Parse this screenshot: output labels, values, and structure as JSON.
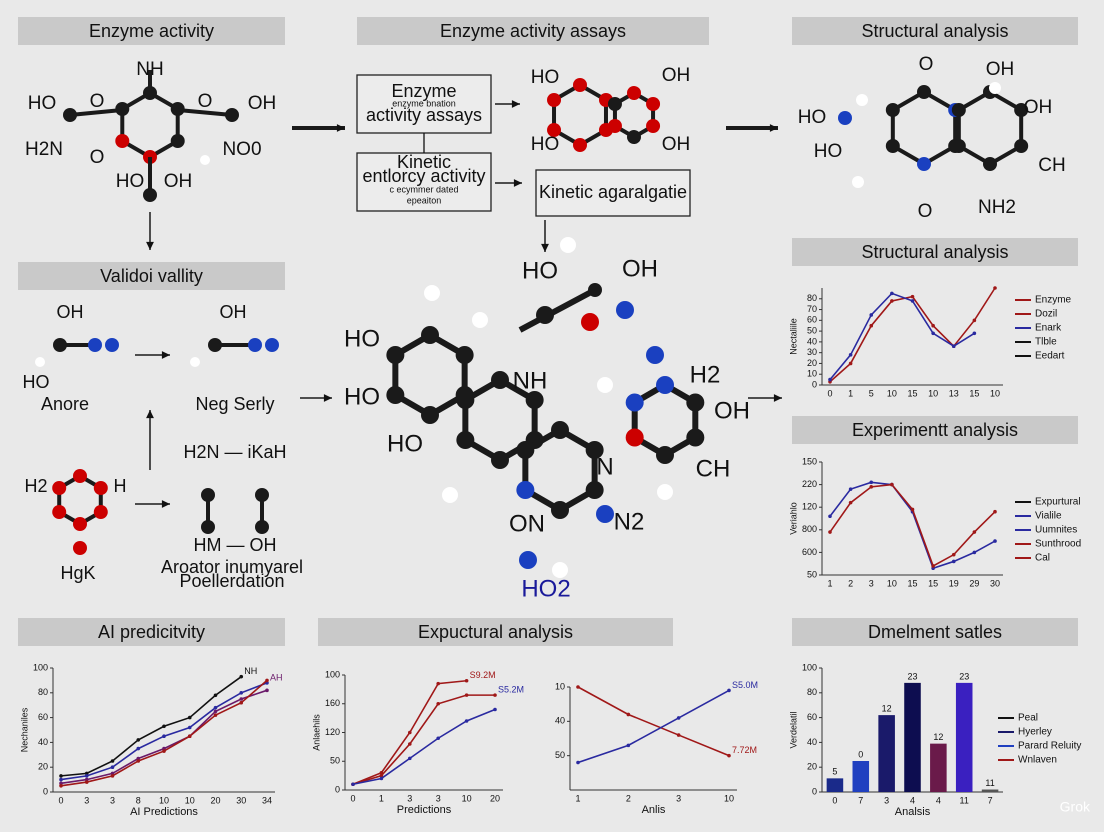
{
  "titles": [
    "Enzyme activity",
    "Enzyme activity assays",
    "Structural analysis",
    "Validoi vallity",
    "Structural analysis",
    "Experimentt analysis",
    "AI predicitvity",
    "Expuctural analysis",
    "Dmelment satles"
  ],
  "labels": {
    "enzyme": [
      "NH",
      "HO",
      "O",
      "O",
      "OH",
      "H2N",
      "O",
      "NO0",
      "HO",
      "OH"
    ],
    "flow": [
      "Enzyme",
      "enzyme bnation",
      "activity assays",
      "Kinetic",
      "entlorcy activity",
      "c ecymmer dated",
      "epeaiton",
      "Kinetic agaralgatie"
    ],
    "assay": [
      "HO",
      "OH",
      "HO",
      "OH"
    ],
    "structure": [
      "O",
      "OH",
      "HO",
      "OH",
      "HO",
      "CH",
      "O",
      "NH2"
    ],
    "validor": [
      "OH",
      "HO",
      "Anore",
      "OH",
      "Neg Serly",
      "H2N — iKaH",
      "HM — OH",
      "Aroator inumyarel",
      "Poellerdation",
      "H2",
      "H",
      "HgK"
    ],
    "center": [
      "HO",
      "OH",
      "HO",
      "HO",
      "NH",
      "HO",
      "H2",
      "OH",
      "N",
      "CH",
      "ON",
      "N2",
      "HO2"
    ]
  },
  "charts": [
    {
      "type": "line",
      "ylabel": "Nectaliile",
      "categories": [
        "0",
        "1",
        "5",
        "10",
        "15",
        "10",
        "13",
        "15",
        "10"
      ],
      "ylim": [
        0,
        90
      ],
      "yticks": [
        0,
        10,
        20,
        30,
        40,
        50,
        60,
        70,
        80
      ],
      "series": [
        {
          "color": "#a01818",
          "values": [
            3,
            20,
            55,
            78,
            82,
            55,
            36,
            60,
            90
          ]
        },
        {
          "color": "#2a2aa0",
          "values": [
            5,
            28,
            65,
            85,
            78,
            48,
            36,
            48,
            null
          ]
        }
      ],
      "legend": [
        {
          "name": "Enzyme",
          "color": "#a01818"
        },
        {
          "name": "Dozil",
          "color": "#a01818"
        },
        {
          "name": "Enark",
          "color": "#2a2aa0"
        },
        {
          "name": "Tlble",
          "color": "#111111"
        },
        {
          "name": "Eedart",
          "color": "#111111"
        }
      ]
    },
    {
      "type": "line",
      "ylabel": "Veriahlo",
      "categories": [
        "1",
        "2",
        "3",
        "10",
        "15",
        "15",
        "19",
        "29",
        "30"
      ],
      "ylim": [
        0,
        5
      ],
      "yticks": [
        {
          "value": 0,
          "label": "50"
        },
        {
          "value": 1,
          "label": "600"
        },
        {
          "value": 2,
          "label": "800"
        },
        {
          "value": 3,
          "label": "120"
        },
        {
          "value": 4,
          "label": "220"
        },
        {
          "value": 5,
          "label": "150"
        }
      ],
      "series": [
        {
          "color": "#2a2aa0",
          "values": [
            2.6,
            3.8,
            4.1,
            4.0,
            2.8,
            0.3,
            0.6,
            1.0,
            1.5
          ]
        },
        {
          "color": "#a01818",
          "values": [
            1.9,
            3.2,
            3.9,
            4.0,
            2.9,
            0.4,
            0.9,
            1.9,
            2.8
          ]
        }
      ],
      "legend": [
        {
          "name": "Expurtural",
          "color": "#111111"
        },
        {
          "name": "Vialile",
          "color": "#2a2aa0"
        },
        {
          "name": "Uumnites",
          "color": "#2a2aa0"
        },
        {
          "name": "Sunthrood",
          "color": "#a01818"
        },
        {
          "name": "Cal",
          "color": "#a01818"
        }
      ]
    },
    {
      "type": "line",
      "ylabel": "Nechaniles",
      "xlabel": "AI Predictions",
      "categories": [
        "0",
        "3",
        "3",
        "8",
        "10",
        "10",
        "20",
        "30",
        "34"
      ],
      "ylim": [
        0,
        100
      ],
      "yticks": [
        0,
        20,
        40,
        60,
        80,
        100
      ],
      "series": [
        {
          "color": "#111111",
          "values": [
            13,
            15,
            25,
            42,
            53,
            60,
            78,
            93,
            null
          ]
        },
        {
          "color": "#2a2aa0",
          "values": [
            10,
            13,
            20,
            35,
            45,
            52,
            68,
            80,
            88
          ]
        },
        {
          "color": "#6a1a6a",
          "values": [
            7,
            10,
            15,
            27,
            35,
            45,
            65,
            75,
            82
          ]
        },
        {
          "color": "#a01818",
          "values": [
            5,
            8,
            13,
            25,
            33,
            45,
            62,
            72,
            90
          ]
        }
      ],
      "end_labels": [
        {
          "text": "NH",
          "color": "#111111"
        },
        {
          "text": "AH",
          "color": "#6a1a6a"
        }
      ]
    },
    {
      "type": "line",
      "ylabel": "Anlaehils",
      "xlabel": "Predictions",
      "categories": [
        "0",
        "1",
        "3",
        "3",
        "10",
        "20"
      ],
      "ylim": [
        0,
        4
      ],
      "yticks": [
        {
          "value": 0,
          "label": "0"
        },
        {
          "value": 1,
          "label": "50"
        },
        {
          "value": 2,
          "label": "120"
        },
        {
          "value": 3,
          "label": "160"
        },
        {
          "value": 4,
          "label": "100"
        }
      ],
      "series": [
        {
          "color": "#a01818",
          "values": [
            0.2,
            0.6,
            2.0,
            3.7,
            3.8,
            null
          ]
        },
        {
          "color": "#a01818",
          "values": [
            0.2,
            0.5,
            1.6,
            3.0,
            3.3,
            3.3
          ]
        },
        {
          "color": "#2a2aa0",
          "values": [
            0.2,
            0.4,
            1.1,
            1.8,
            2.4,
            2.8
          ]
        }
      ],
      "end_labels": [
        {
          "text": "S9.2M",
          "color": "#a01818"
        },
        {
          "text": "S5.2M",
          "color": "#2a2aa0"
        }
      ]
    },
    {
      "type": "line",
      "xlabel": "Anlis",
      "categories": [
        "1",
        "2",
        "3",
        "10"
      ],
      "ylim": [
        0,
        3
      ],
      "yticks": [
        {
          "value": 1,
          "label": "50"
        },
        {
          "value": 2,
          "label": "40"
        },
        {
          "value": 3,
          "label": "10"
        }
      ],
      "series": [
        {
          "color": "#a01818",
          "values": [
            3,
            2.2,
            1.6,
            1.0
          ]
        },
        {
          "color": "#2a2aa0",
          "values": [
            0.8,
            1.3,
            2.1,
            2.9
          ]
        }
      ],
      "end_labels": [
        {
          "text": "7.72M",
          "color": "#a01818"
        },
        {
          "text": "S5.0M",
          "color": "#2a2aa0"
        }
      ]
    },
    {
      "type": "bar",
      "ylabel": "Verdelatil",
      "xlabel": "Analsis",
      "categories": [
        "0",
        "7",
        "3",
        "4",
        "4",
        "11",
        "7"
      ],
      "ylim": [
        0,
        100
      ],
      "yticks": [
        0,
        20,
        40,
        60,
        80,
        100
      ],
      "values": [
        11,
        25,
        62,
        88,
        39,
        88,
        2
      ],
      "colors": [
        "#1a2a8a",
        "#2040c0",
        "#1a1a6a",
        "#0d0d50",
        "#6a1a4a",
        "#3a20c0",
        "#555555"
      ],
      "bar_annotations": [
        "5",
        "0",
        "12",
        "23",
        "12",
        "23",
        "11"
      ],
      "legend": [
        {
          "name": "Peal",
          "color": "#111111"
        },
        {
          "name": "Hyerley",
          "color": "#1a1a6a"
        },
        {
          "name": "Parard Reluity",
          "color": "#2040c0"
        },
        {
          "name": "Wnlaven",
          "color": "#a01818"
        }
      ]
    }
  ],
  "watermark": "Grok"
}
